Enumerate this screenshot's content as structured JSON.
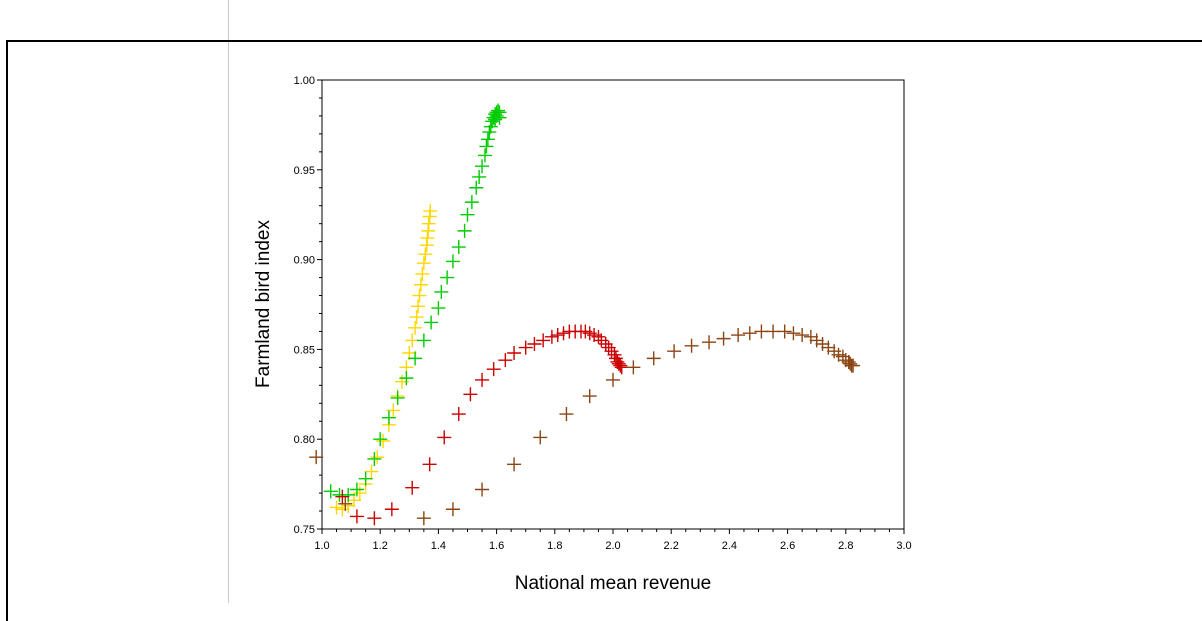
{
  "chart_data": {
    "type": "scatter",
    "title": "",
    "xlabel": "National mean revenue",
    "ylabel": "Farmland bird index",
    "xlim": [
      1.0,
      3.0
    ],
    "ylim": [
      0.75,
      1.0
    ],
    "x_ticks": [
      "1.0",
      "1.2",
      "1.4",
      "1.6",
      "1.8",
      "2.0",
      "2.2",
      "2.4",
      "2.6",
      "2.8",
      "3.0"
    ],
    "y_ticks": [
      "0.75",
      "0.80",
      "0.85",
      "0.90",
      "0.95",
      "1.00"
    ],
    "marker": "plus",
    "grid": false,
    "series": [
      {
        "color": "#ffd700",
        "points": [
          [
            1.05,
            0.762
          ],
          [
            1.07,
            0.761
          ],
          [
            1.09,
            0.763
          ],
          [
            1.11,
            0.766
          ],
          [
            1.13,
            0.77
          ],
          [
            1.15,
            0.775
          ],
          [
            1.17,
            0.782
          ],
          [
            1.19,
            0.79
          ],
          [
            1.21,
            0.799
          ],
          [
            1.23,
            0.808
          ],
          [
            1.245,
            0.816
          ],
          [
            1.26,
            0.824
          ],
          [
            1.275,
            0.832
          ],
          [
            1.29,
            0.84
          ],
          [
            1.3,
            0.848
          ],
          [
            1.31,
            0.855
          ],
          [
            1.32,
            0.862
          ],
          [
            1.325,
            0.868
          ],
          [
            1.33,
            0.874
          ],
          [
            1.335,
            0.88
          ],
          [
            1.34,
            0.886
          ],
          [
            1.345,
            0.892
          ],
          [
            1.35,
            0.898
          ],
          [
            1.355,
            0.903
          ],
          [
            1.36,
            0.908
          ],
          [
            1.362,
            0.912
          ],
          [
            1.365,
            0.916
          ],
          [
            1.367,
            0.92
          ],
          [
            1.37,
            0.924
          ],
          [
            1.372,
            0.927
          ]
        ]
      },
      {
        "color": "#00cc00",
        "points": [
          [
            1.03,
            0.771
          ],
          [
            1.06,
            0.769
          ],
          [
            1.09,
            0.769
          ],
          [
            1.12,
            0.772
          ],
          [
            1.15,
            0.778
          ],
          [
            1.18,
            0.789
          ],
          [
            1.2,
            0.8
          ],
          [
            1.23,
            0.812
          ],
          [
            1.26,
            0.823
          ],
          [
            1.29,
            0.834
          ],
          [
            1.32,
            0.845
          ],
          [
            1.35,
            0.855
          ],
          [
            1.375,
            0.865
          ],
          [
            1.4,
            0.873
          ],
          [
            1.41,
            0.882
          ],
          [
            1.43,
            0.89
          ],
          [
            1.45,
            0.899
          ],
          [
            1.47,
            0.907
          ],
          [
            1.49,
            0.916
          ],
          [
            1.5,
            0.925
          ],
          [
            1.515,
            0.932
          ],
          [
            1.53,
            0.94
          ],
          [
            1.54,
            0.946
          ],
          [
            1.55,
            0.952
          ],
          [
            1.56,
            0.958
          ],
          [
            1.565,
            0.963
          ],
          [
            1.57,
            0.967
          ],
          [
            1.575,
            0.971
          ],
          [
            1.58,
            0.974
          ],
          [
            1.585,
            0.977
          ],
          [
            1.59,
            0.979
          ],
          [
            1.595,
            0.981
          ],
          [
            1.6,
            0.982
          ],
          [
            1.605,
            0.983
          ],
          [
            1.61,
            0.982
          ],
          [
            1.6,
            0.98
          ],
          [
            1.595,
            0.978
          ],
          [
            1.61,
            0.979
          ]
        ]
      },
      {
        "color": "#cc0000",
        "points": [
          [
            1.07,
            0.768
          ],
          [
            1.12,
            0.757
          ],
          [
            1.18,
            0.756
          ],
          [
            1.24,
            0.761
          ],
          [
            1.31,
            0.773
          ],
          [
            1.37,
            0.786
          ],
          [
            1.42,
            0.801
          ],
          [
            1.47,
            0.814
          ],
          [
            1.51,
            0.825
          ],
          [
            1.55,
            0.833
          ],
          [
            1.59,
            0.839
          ],
          [
            1.63,
            0.844
          ],
          [
            1.66,
            0.848
          ],
          [
            1.7,
            0.851
          ],
          [
            1.73,
            0.853
          ],
          [
            1.76,
            0.855
          ],
          [
            1.79,
            0.857
          ],
          [
            1.81,
            0.858
          ],
          [
            1.83,
            0.859
          ],
          [
            1.85,
            0.86
          ],
          [
            1.87,
            0.86
          ],
          [
            1.89,
            0.86
          ],
          [
            1.905,
            0.86
          ],
          [
            1.92,
            0.859
          ],
          [
            1.935,
            0.858
          ],
          [
            1.95,
            0.857
          ],
          [
            1.96,
            0.855
          ],
          [
            1.975,
            0.853
          ],
          [
            1.985,
            0.851
          ],
          [
            1.995,
            0.849
          ],
          [
            2.005,
            0.847
          ],
          [
            2.01,
            0.845
          ],
          [
            2.015,
            0.843
          ],
          [
            2.02,
            0.842
          ],
          [
            2.025,
            0.841
          ],
          [
            2.03,
            0.84
          ]
        ]
      },
      {
        "color": "#8b4513",
        "points": [
          [
            1.08,
            0.764
          ],
          [
            1.35,
            0.756
          ],
          [
            1.45,
            0.761
          ],
          [
            1.55,
            0.772
          ],
          [
            1.66,
            0.786
          ],
          [
            1.75,
            0.801
          ],
          [
            1.84,
            0.814
          ],
          [
            1.92,
            0.824
          ],
          [
            2.0,
            0.833
          ],
          [
            2.07,
            0.84
          ],
          [
            2.14,
            0.845
          ],
          [
            2.21,
            0.849
          ],
          [
            2.27,
            0.852
          ],
          [
            2.33,
            0.854
          ],
          [
            2.38,
            0.856
          ],
          [
            2.43,
            0.858
          ],
          [
            2.47,
            0.859
          ],
          [
            2.51,
            0.86
          ],
          [
            2.55,
            0.86
          ],
          [
            2.59,
            0.86
          ],
          [
            2.62,
            0.859
          ],
          [
            2.65,
            0.858
          ],
          [
            2.68,
            0.857
          ],
          [
            2.7,
            0.855
          ],
          [
            2.72,
            0.853
          ],
          [
            2.74,
            0.851
          ],
          [
            2.76,
            0.849
          ],
          [
            2.775,
            0.847
          ],
          [
            2.79,
            0.846
          ],
          [
            2.8,
            0.844
          ],
          [
            2.81,
            0.843
          ],
          [
            2.815,
            0.842
          ],
          [
            2.82,
            0.841
          ],
          [
            2.825,
            0.841
          ]
        ]
      },
      {
        "color": "#8b4513",
        "points": [
          [
            0.98,
            0.79
          ]
        ]
      }
    ]
  }
}
